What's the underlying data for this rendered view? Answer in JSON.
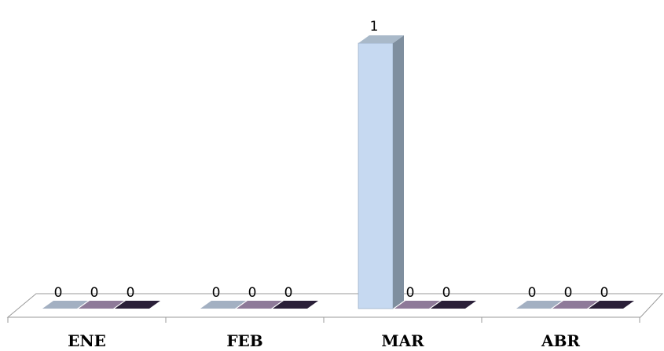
{
  "chart_data": {
    "type": "bar",
    "categories": [
      "ENE",
      "FEB",
      "MAR",
      "ABR"
    ],
    "series": [
      {
        "values": [
          0,
          0,
          1,
          0
        ],
        "color": "#c6d9f1",
        "side_color": "#7f8f9f",
        "top_color": "#a9b9c9",
        "flat_color": "#a3b0c2"
      },
      {
        "values": [
          0,
          0,
          0,
          0
        ],
        "color": "#8e7a99",
        "flat_color": "#8e7a99"
      },
      {
        "values": [
          0,
          0,
          0,
          0
        ],
        "color": "#2a1f38",
        "flat_color": "#2a1f38"
      }
    ],
    "ylim": [
      0,
      1
    ],
    "grid": false,
    "legend": "none",
    "three_d": true
  }
}
